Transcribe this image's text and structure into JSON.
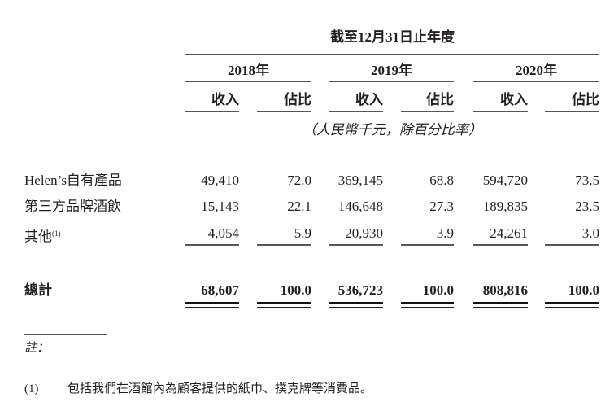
{
  "header": {
    "period": "截至12月31日止年度",
    "years": [
      "2018年",
      "2019年",
      "2020年"
    ],
    "subcols": [
      "收入",
      "佔比"
    ],
    "units": "（人民幣千元，除百分比率）"
  },
  "rows": [
    {
      "label": "Helen’s自有產品",
      "values": [
        "49,410",
        "72.0",
        "369,145",
        "68.8",
        "594,720",
        "73.5"
      ]
    },
    {
      "label": "第三方品牌酒飲",
      "values": [
        "15,143",
        "22.1",
        "146,648",
        "27.3",
        "189,835",
        "23.5"
      ]
    },
    {
      "label": "其他",
      "sup": "(1)",
      "values": [
        "4,054",
        "5.9",
        "20,930",
        "3.9",
        "24,261",
        "3.0"
      ]
    }
  ],
  "total": {
    "label": "總計",
    "values": [
      "68,607",
      "100.0",
      "536,723",
      "100.0",
      "808,816",
      "100.0"
    ]
  },
  "notes": {
    "title": "註：",
    "items": [
      {
        "num": "(1)",
        "text": "包括我們在酒館內為顧客提供的紙巾、撲克牌等消費品。"
      }
    ]
  }
}
